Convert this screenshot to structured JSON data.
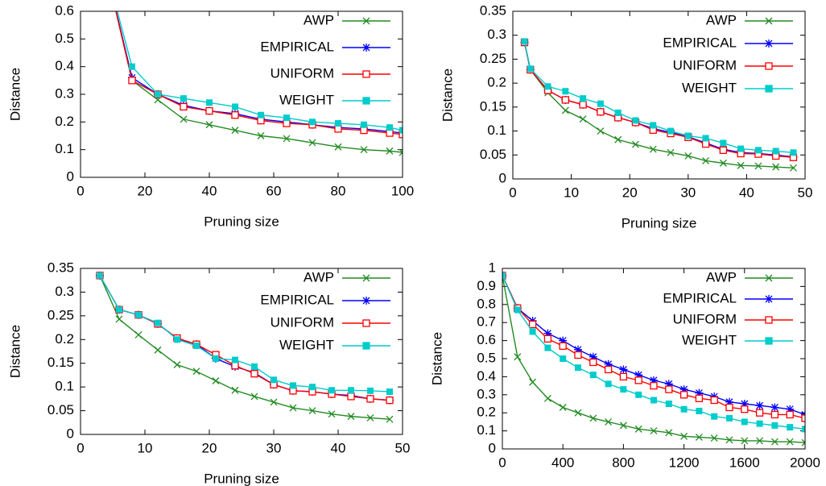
{
  "chart_data": [
    {
      "type": "line",
      "x_label": "Pruning size",
      "y_label": "Distance",
      "x": [
        8,
        16,
        24,
        32,
        40,
        48,
        56,
        64,
        72,
        80,
        88,
        96,
        100
      ],
      "xlim": [
        0,
        100
      ],
      "xticks": [
        0,
        20,
        40,
        60,
        80,
        100
      ],
      "ylim": [
        0,
        0.6
      ],
      "yticks": [
        0,
        0.1,
        0.2,
        0.3,
        0.4,
        0.5,
        0.6
      ],
      "legend": "upper right",
      "series": [
        {
          "name": "AWP",
          "color": "#228b22",
          "marker": "x",
          "values": [
            0.75,
            0.35,
            0.28,
            0.21,
            0.19,
            0.17,
            0.15,
            0.14,
            0.125,
            0.11,
            0.1,
            0.095,
            0.09
          ]
        },
        {
          "name": "EMPIRICAL",
          "color": "#0000ff",
          "marker": "star",
          "values": [
            0.75,
            0.36,
            0.3,
            0.26,
            0.24,
            0.23,
            0.21,
            0.2,
            0.19,
            0.18,
            0.175,
            0.165,
            0.16
          ]
        },
        {
          "name": "UNIFORM",
          "color": "#ff0000",
          "marker": "open-square",
          "values": [
            0.75,
            0.35,
            0.3,
            0.255,
            0.24,
            0.225,
            0.205,
            0.195,
            0.19,
            0.175,
            0.17,
            0.16,
            0.155
          ]
        },
        {
          "name": "WEIGHT",
          "color": "#00cccc",
          "marker": "square",
          "values": [
            0.75,
            0.4,
            0.3,
            0.285,
            0.27,
            0.255,
            0.225,
            0.215,
            0.2,
            0.195,
            0.19,
            0.18,
            0.17
          ]
        }
      ]
    },
    {
      "type": "line",
      "x_label": "Pruning size",
      "y_label": "Distance",
      "x": [
        2,
        3,
        6,
        9,
        12,
        15,
        18,
        21,
        24,
        27,
        30,
        33,
        36,
        39,
        42,
        45,
        48
      ],
      "xlim": [
        0,
        50
      ],
      "xticks": [
        0,
        10,
        20,
        30,
        40,
        50
      ],
      "ylim": [
        0,
        0.35
      ],
      "yticks": [
        0,
        0.05,
        0.1,
        0.15,
        0.2,
        0.25,
        0.3,
        0.35
      ],
      "legend": "upper right",
      "series": [
        {
          "name": "AWP",
          "color": "#228b22",
          "marker": "x",
          "values": [
            0.285,
            0.228,
            0.18,
            0.143,
            0.125,
            0.1,
            0.082,
            0.072,
            0.062,
            0.055,
            0.048,
            0.038,
            0.033,
            0.028,
            0.027,
            0.025,
            0.023
          ]
        },
        {
          "name": "EMPIRICAL",
          "color": "#0000ff",
          "marker": "star",
          "values": [
            0.285,
            0.228,
            0.185,
            0.165,
            0.155,
            0.14,
            0.128,
            0.118,
            0.105,
            0.097,
            0.088,
            0.075,
            0.062,
            0.055,
            0.053,
            0.05,
            0.046
          ]
        },
        {
          "name": "UNIFORM",
          "color": "#ff0000",
          "marker": "open-square",
          "values": [
            0.285,
            0.228,
            0.185,
            0.165,
            0.155,
            0.14,
            0.128,
            0.118,
            0.102,
            0.095,
            0.087,
            0.073,
            0.06,
            0.053,
            0.052,
            0.048,
            0.045
          ]
        },
        {
          "name": "WEIGHT",
          "color": "#00cccc",
          "marker": "square",
          "values": [
            0.287,
            0.23,
            0.193,
            0.183,
            0.168,
            0.157,
            0.138,
            0.122,
            0.112,
            0.1,
            0.09,
            0.085,
            0.075,
            0.063,
            0.06,
            0.058,
            0.055
          ]
        }
      ]
    },
    {
      "type": "line",
      "x_label": "Pruning size",
      "y_label": "Distance",
      "x": [
        3,
        6,
        9,
        12,
        15,
        18,
        21,
        24,
        27,
        30,
        33,
        36,
        39,
        42,
        45,
        48
      ],
      "xlim": [
        0,
        50
      ],
      "xticks": [
        0,
        10,
        20,
        30,
        40,
        50
      ],
      "ylim": [
        0,
        0.35
      ],
      "yticks": [
        0,
        0.05,
        0.1,
        0.15,
        0.2,
        0.25,
        0.3,
        0.35
      ],
      "legend": "upper right",
      "series": [
        {
          "name": "AWP",
          "color": "#228b22",
          "marker": "x",
          "values": [
            0.335,
            0.243,
            0.21,
            0.178,
            0.147,
            0.133,
            0.113,
            0.093,
            0.08,
            0.068,
            0.056,
            0.05,
            0.043,
            0.038,
            0.035,
            0.032
          ]
        },
        {
          "name": "EMPIRICAL",
          "color": "#0000ff",
          "marker": "star",
          "values": [
            0.335,
            0.263,
            0.252,
            0.233,
            0.202,
            0.19,
            0.16,
            0.143,
            0.13,
            0.105,
            0.092,
            0.09,
            0.085,
            0.082,
            0.075,
            0.072
          ]
        },
        {
          "name": "UNIFORM",
          "color": "#ff0000",
          "marker": "open-square",
          "values": [
            0.335,
            0.263,
            0.252,
            0.233,
            0.203,
            0.19,
            0.168,
            0.145,
            0.128,
            0.105,
            0.092,
            0.09,
            0.085,
            0.08,
            0.075,
            0.072
          ]
        },
        {
          "name": "WEIGHT",
          "color": "#00cccc",
          "marker": "square",
          "values": [
            0.335,
            0.263,
            0.252,
            0.235,
            0.2,
            0.187,
            0.16,
            0.157,
            0.143,
            0.115,
            0.103,
            0.1,
            0.093,
            0.093,
            0.092,
            0.09
          ]
        }
      ]
    },
    {
      "type": "line",
      "x_label": "Pruning size",
      "y_label": "Distance",
      "x": [
        0,
        100,
        200,
        300,
        400,
        500,
        600,
        700,
        800,
        900,
        1000,
        1100,
        1200,
        1300,
        1400,
        1500,
        1600,
        1700,
        1800,
        1900,
        2000
      ],
      "xlim": [
        0,
        2000
      ],
      "xticks": [
        0,
        400,
        800,
        1200,
        1600,
        2000
      ],
      "ylim": [
        0,
        1
      ],
      "yticks": [
        0,
        0.1,
        0.2,
        0.3,
        0.4,
        0.5,
        0.6,
        0.7,
        0.8,
        0.9,
        1
      ],
      "legend": "upper right",
      "series": [
        {
          "name": "AWP",
          "color": "#228b22",
          "marker": "x",
          "values": [
            0.96,
            0.51,
            0.37,
            0.28,
            0.23,
            0.2,
            0.17,
            0.15,
            0.13,
            0.11,
            0.1,
            0.09,
            0.07,
            0.065,
            0.06,
            0.05,
            0.045,
            0.045,
            0.04,
            0.04,
            0.035
          ]
        },
        {
          "name": "EMPIRICAL",
          "color": "#0000ff",
          "marker": "star",
          "values": [
            0.96,
            0.78,
            0.71,
            0.64,
            0.6,
            0.55,
            0.51,
            0.47,
            0.44,
            0.41,
            0.38,
            0.36,
            0.33,
            0.31,
            0.29,
            0.26,
            0.25,
            0.24,
            0.23,
            0.22,
            0.19
          ]
        },
        {
          "name": "UNIFORM",
          "color": "#ff0000",
          "marker": "open-square",
          "values": [
            0.96,
            0.78,
            0.69,
            0.61,
            0.57,
            0.52,
            0.48,
            0.44,
            0.4,
            0.38,
            0.35,
            0.33,
            0.3,
            0.28,
            0.27,
            0.23,
            0.22,
            0.2,
            0.19,
            0.19,
            0.17
          ]
        },
        {
          "name": "WEIGHT",
          "color": "#00cccc",
          "marker": "square",
          "values": [
            0.96,
            0.77,
            0.65,
            0.56,
            0.5,
            0.45,
            0.41,
            0.36,
            0.33,
            0.3,
            0.27,
            0.25,
            0.22,
            0.21,
            0.18,
            0.17,
            0.15,
            0.14,
            0.13,
            0.12,
            0.11
          ]
        }
      ]
    }
  ]
}
